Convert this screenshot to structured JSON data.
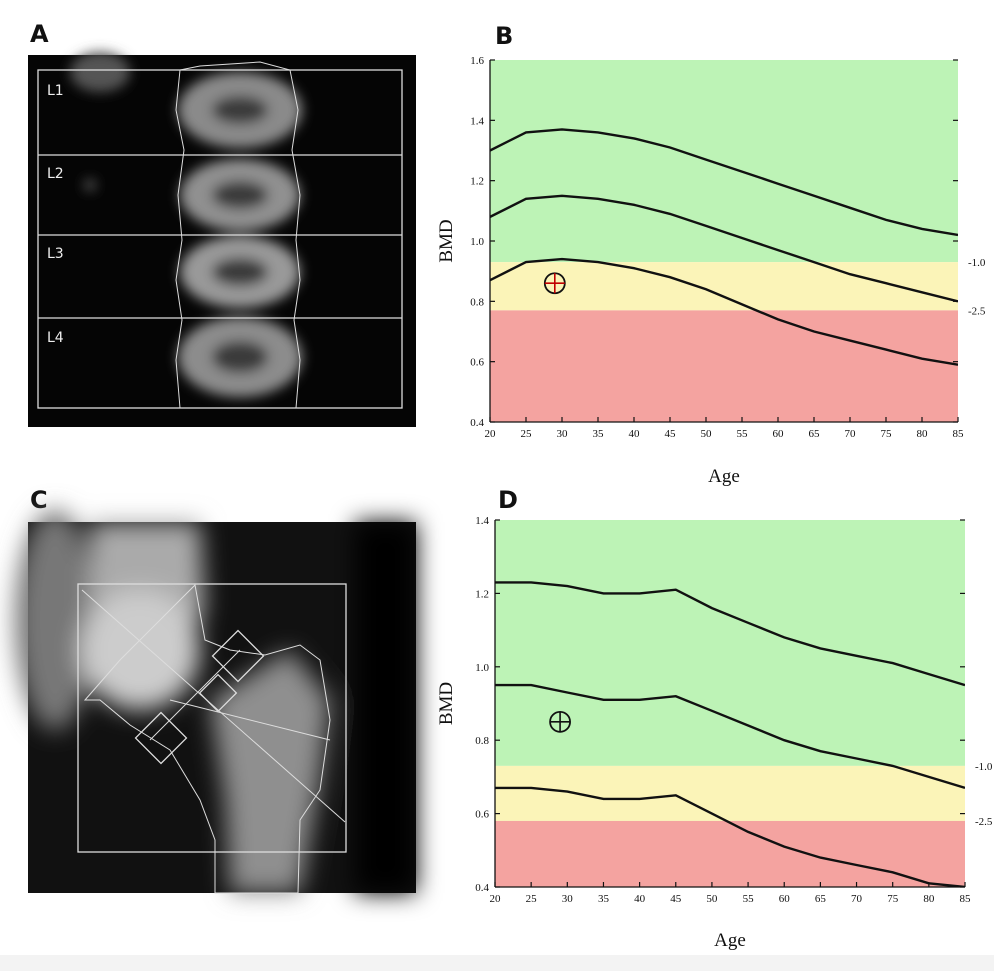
{
  "images": [
    {
      "label": "A",
      "regions": [
        "L1",
        "L2",
        "L3",
        "L4"
      ]
    },
    {
      "label": "C"
    }
  ],
  "chart_data": [
    {
      "type": "line",
      "label": "B",
      "xlabel": "Age",
      "ylabel": "BMD",
      "x": [
        20,
        25,
        30,
        35,
        40,
        45,
        50,
        55,
        60,
        65,
        70,
        75,
        80,
        85
      ],
      "xlim": [
        20,
        85
      ],
      "xticks": [
        20,
        25,
        30,
        35,
        40,
        45,
        50,
        55,
        60,
        65,
        70,
        75,
        80,
        85
      ],
      "ylim": [
        0.4,
        1.6
      ],
      "yticks": [
        0.4,
        0.6,
        0.8,
        {
          "value": 1,
          "label": "1.0"
        },
        1.2,
        1.4,
        1.6
      ],
      "thresholds": [
        {
          "value": 0.93,
          "label": "-1.0"
        },
        {
          "value": 0.77,
          "label": "-2.5"
        }
      ],
      "band_colors": [
        "#bdf3b6",
        "#fbf4b8",
        "#f4a3a0"
      ],
      "series": [
        {
          "color": "#111111",
          "values": [
            1.3,
            1.36,
            1.37,
            1.36,
            1.34,
            1.31,
            1.27,
            1.23,
            1.19,
            1.15,
            1.11,
            1.07,
            1.04,
            1.02
          ]
        },
        {
          "color": "#111111",
          "values": [
            1.08,
            1.14,
            1.15,
            1.14,
            1.12,
            1.09,
            1.05,
            1.01,
            0.97,
            0.93,
            0.89,
            0.86,
            0.83,
            0.8
          ]
        },
        {
          "color": "#111111",
          "values": [
            0.87,
            0.93,
            0.94,
            0.93,
            0.91,
            0.88,
            0.84,
            0.79,
            0.74,
            0.7,
            0.67,
            0.64,
            0.61,
            0.59
          ]
        }
      ],
      "point": {
        "x": 29,
        "y": 0.86,
        "color": "#c00000"
      }
    },
    {
      "type": "line",
      "label": "D",
      "xlabel": "Age",
      "ylabel": "BMD",
      "x": [
        20,
        25,
        30,
        35,
        40,
        45,
        50,
        55,
        60,
        65,
        70,
        75,
        80,
        85
      ],
      "xlim": [
        20,
        85
      ],
      "xticks": [
        20,
        25,
        30,
        35,
        40,
        45,
        50,
        55,
        60,
        65,
        70,
        75,
        80,
        85
      ],
      "ylim": [
        0.4,
        1.4
      ],
      "yticks": [
        0.4,
        0.6,
        0.8,
        {
          "value": 1,
          "label": "1.0"
        },
        1.2,
        1.4
      ],
      "thresholds": [
        {
          "value": 0.73,
          "label": "-1.0"
        },
        {
          "value": 0.58,
          "label": "-2.5"
        }
      ],
      "band_colors": [
        "#bdf3b6",
        "#fbf4b8",
        "#f4a3a0"
      ],
      "series": [
        {
          "color": "#111111",
          "values": [
            1.23,
            1.23,
            1.22,
            1.2,
            1.2,
            1.21,
            1.16,
            1.12,
            1.08,
            1.05,
            1.03,
            1.01,
            0.98,
            0.95
          ]
        },
        {
          "color": "#111111",
          "values": [
            0.95,
            0.95,
            0.93,
            0.91,
            0.91,
            0.92,
            0.88,
            0.84,
            0.8,
            0.77,
            0.75,
            0.73,
            0.7,
            0.67
          ]
        },
        {
          "color": "#111111",
          "values": [
            0.67,
            0.67,
            0.66,
            0.64,
            0.64,
            0.65,
            0.6,
            0.55,
            0.51,
            0.48,
            0.46,
            0.44,
            0.41,
            0.4
          ]
        }
      ],
      "point": {
        "x": 29,
        "y": 0.85,
        "color": "#111111"
      }
    }
  ]
}
